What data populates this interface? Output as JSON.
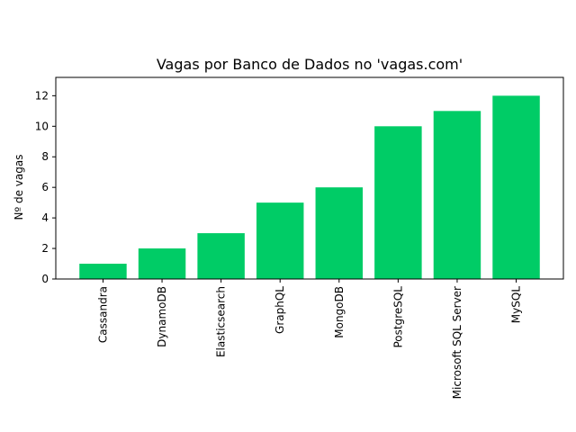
{
  "chart_data": {
    "type": "bar",
    "title": "Vagas por Banco de Dados no 'vagas.com'",
    "xlabel": "",
    "ylabel": "Nº de vagas",
    "categories": [
      "Cassandra",
      "DynamoDB",
      "Elasticsearch",
      "GraphQL",
      "MongoDB",
      "PostgreSQL",
      "Microsoft SQL Server",
      "MySQL"
    ],
    "values": [
      1,
      2,
      3,
      5,
      6,
      10,
      11,
      12
    ],
    "ylim": [
      0,
      13.2
    ],
    "yticks": [
      0,
      2,
      4,
      6,
      8,
      10,
      12
    ],
    "bar_color": "#00cc66",
    "grid": false,
    "legend": "none"
  }
}
